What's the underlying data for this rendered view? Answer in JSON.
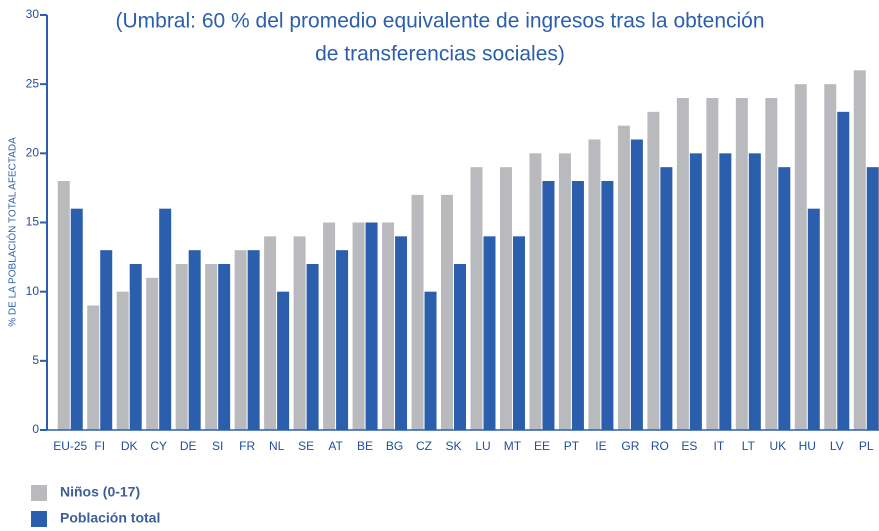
{
  "chart_data": {
    "type": "bar",
    "title_lines": [
      "(Umbral: 60 % del promedio equivalente de ingresos tras la obtención",
      "de transferencias sociales)"
    ],
    "y_label": "% DE LA POBLACIÓN TOTAL AFECTADA",
    "categories": [
      "EU-25",
      "FI",
      "DK",
      "CY",
      "DE",
      "SI",
      "FR",
      "NL",
      "SE",
      "AT",
      "BE",
      "BG",
      "CZ",
      "SK",
      "LU",
      "MT",
      "EE",
      "PT",
      "IE",
      "GR",
      "RO",
      "ES",
      "IT",
      "LT",
      "UK",
      "HU",
      "LV",
      "PL"
    ],
    "series": [
      {
        "name": "Niños (0-17)",
        "color": "#b9babd",
        "values": [
          18,
          9,
          10,
          11,
          12,
          12,
          13,
          14,
          14,
          15,
          15,
          15,
          17,
          17,
          19,
          19,
          20,
          20,
          21,
          22,
          23,
          24,
          24,
          24,
          24,
          25,
          25,
          26
        ]
      },
      {
        "name": "Población total",
        "color": "#2b5fad",
        "values": [
          16,
          13,
          12,
          16,
          13,
          12,
          13,
          10,
          12,
          13,
          15,
          14,
          10,
          12,
          14,
          14,
          18,
          18,
          18,
          21,
          19,
          20,
          20,
          20,
          19,
          16,
          23,
          19
        ]
      }
    ],
    "ylim": [
      0,
      30
    ],
    "yticks": [
      0,
      5,
      10,
      15,
      20,
      25,
      30
    ],
    "legend": "bottom-left"
  }
}
